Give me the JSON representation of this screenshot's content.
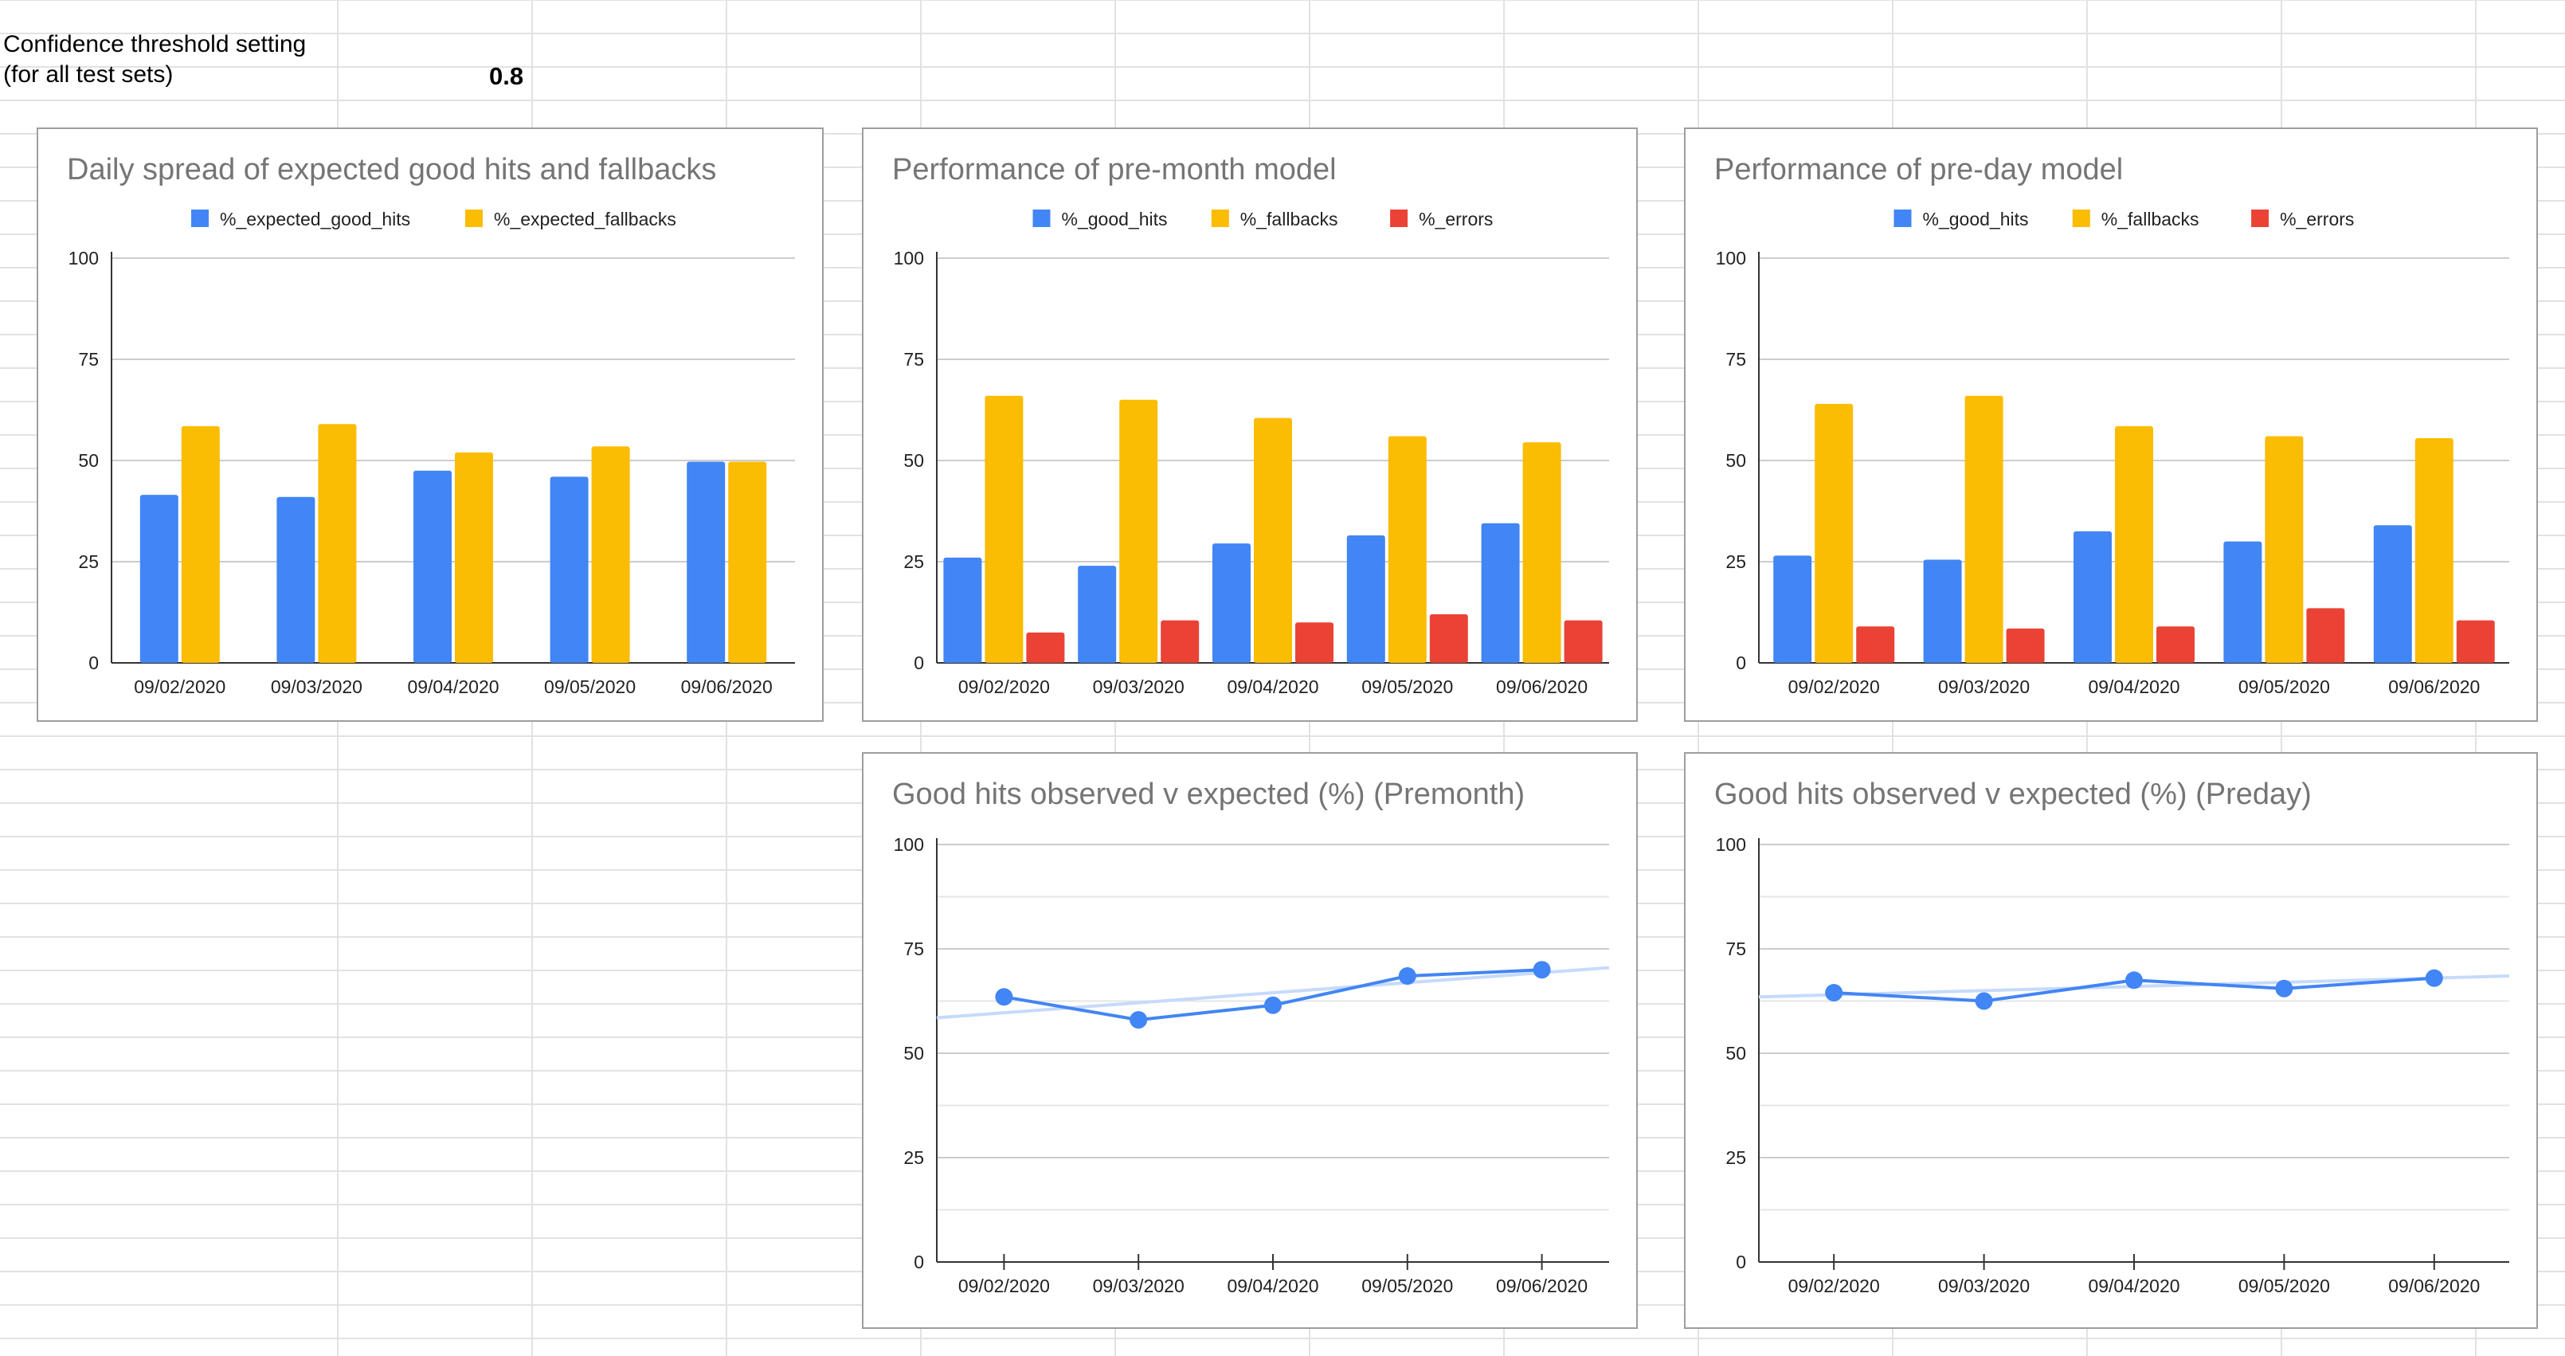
{
  "sheet": {
    "label_line1": "Confidence threshold setting",
    "label_line2": "(for all test sets)",
    "threshold_value": "0.8"
  },
  "colors": {
    "blue": "#4285f4",
    "yellow": "#fbbc04",
    "red": "#ea4335",
    "trendline": "#c6dafc",
    "gridline": "#cccccc",
    "axis": "#333333",
    "title": "#757575"
  },
  "chart_data": [
    {
      "id": "daily-spread",
      "type": "bar",
      "title": "Daily spread of expected good hits and fallbacks",
      "categories": [
        "09/02/2020",
        "09/03/2020",
        "09/04/2020",
        "09/05/2020",
        "09/06/2020"
      ],
      "series": [
        {
          "name": "%_expected_good_hits",
          "color": "#4285f4",
          "values": [
            41.5,
            41,
            47.5,
            46,
            49.7
          ]
        },
        {
          "name": "%_expected_fallbacks",
          "color": "#fbbc04",
          "values": [
            58.5,
            59,
            52,
            53.5,
            49.7
          ]
        }
      ],
      "yticks": [
        0,
        25,
        50,
        75,
        100
      ],
      "ylim": [
        0,
        100
      ],
      "legend": "top"
    },
    {
      "id": "pre-month",
      "type": "bar",
      "title": "Performance of pre-month model",
      "categories": [
        "09/02/2020",
        "09/03/2020",
        "09/04/2020",
        "09/05/2020",
        "09/06/2020"
      ],
      "series": [
        {
          "name": "%_good_hits",
          "color": "#4285f4",
          "values": [
            26,
            24,
            29.5,
            31.5,
            34.5
          ]
        },
        {
          "name": "%_fallbacks",
          "color": "#fbbc04",
          "values": [
            66,
            65,
            60.5,
            56,
            54.5
          ]
        },
        {
          "name": "%_errors",
          "color": "#ea4335",
          "values": [
            7.5,
            10.5,
            10,
            12,
            10.5
          ]
        }
      ],
      "yticks": [
        0,
        25,
        50,
        75,
        100
      ],
      "ylim": [
        0,
        100
      ],
      "legend": "top"
    },
    {
      "id": "pre-day",
      "type": "bar",
      "title": "Performance of pre-day model",
      "categories": [
        "09/02/2020",
        "09/03/2020",
        "09/04/2020",
        "09/05/2020",
        "09/06/2020"
      ],
      "series": [
        {
          "name": "%_good_hits",
          "color": "#4285f4",
          "values": [
            26.5,
            25.5,
            32.5,
            30,
            34
          ]
        },
        {
          "name": "%_fallbacks",
          "color": "#fbbc04",
          "values": [
            64,
            66,
            58.5,
            56,
            55.5
          ]
        },
        {
          "name": "%_errors",
          "color": "#ea4335",
          "values": [
            9,
            8.5,
            9,
            13.5,
            10.5
          ]
        }
      ],
      "yticks": [
        0,
        25,
        50,
        75,
        100
      ],
      "ylim": [
        0,
        100
      ],
      "legend": "top"
    },
    {
      "id": "good-hits-premonth",
      "type": "line",
      "title": "Good hits observed v expected (%) (Premonth)",
      "categories": [
        "09/02/2020",
        "09/03/2020",
        "09/04/2020",
        "09/05/2020",
        "09/06/2020"
      ],
      "series": [
        {
          "color": "#4285f4",
          "values": [
            63.5,
            58,
            61.5,
            68.5,
            70
          ]
        }
      ],
      "trendline": {
        "color": "#c6dafc",
        "start": 58.5,
        "end": 70.5
      },
      "yticks": [
        0,
        25,
        50,
        75,
        100
      ],
      "ylim": [
        0,
        100
      ]
    },
    {
      "id": "good-hits-preday",
      "type": "line",
      "title": "Good hits observed v expected (%) (Preday)",
      "categories": [
        "09/02/2020",
        "09/03/2020",
        "09/04/2020",
        "09/05/2020",
        "09/06/2020"
      ],
      "series": [
        {
          "color": "#4285f4",
          "values": [
            64.5,
            62.5,
            67.5,
            65.5,
            68
          ]
        }
      ],
      "trendline": {
        "color": "#c6dafc",
        "start": 63.5,
        "end": 68.5
      },
      "yticks": [
        0,
        25,
        50,
        75,
        100
      ],
      "ylim": [
        0,
        100
      ]
    }
  ]
}
